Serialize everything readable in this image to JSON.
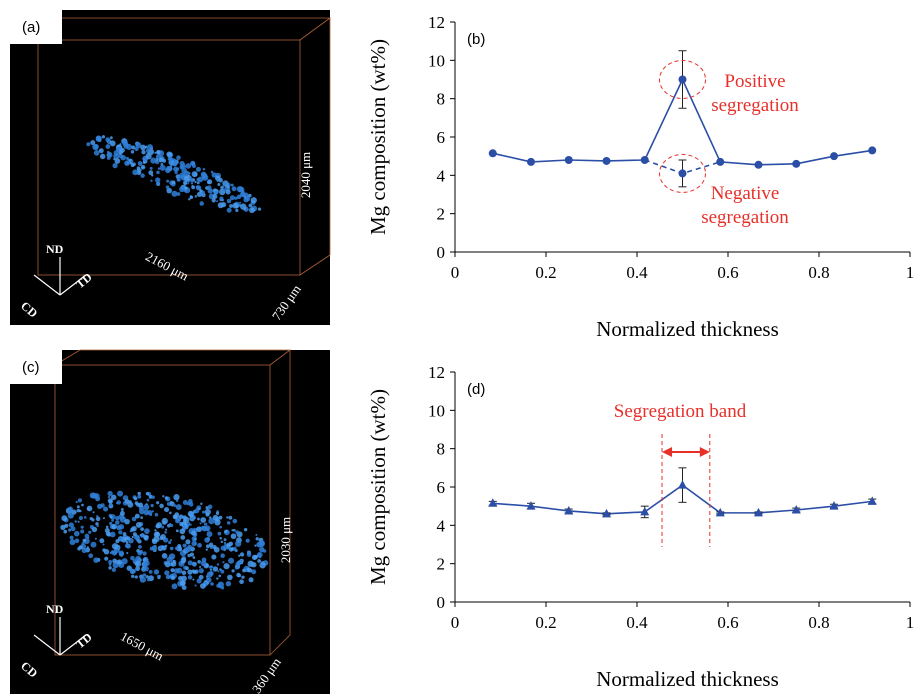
{
  "chart_data": [
    {
      "type": "line",
      "panel": "(b)",
      "xlabel": "Normalized thickness",
      "ylabel": "Mg composition (wt%)",
      "x": [
        0.083,
        0.167,
        0.25,
        0.333,
        0.417,
        0.5,
        0.583,
        0.667,
        0.75,
        0.833,
        0.917
      ],
      "series": [
        {
          "color": "#2b4ea6",
          "marker": "circle",
          "dashed": false,
          "values": [
            5.15,
            4.7,
            4.8,
            4.75,
            4.8,
            9.0,
            4.7,
            4.55,
            4.6,
            5.0,
            5.3
          ],
          "errors": [
            null,
            null,
            null,
            null,
            null,
            1.5,
            null,
            null,
            null,
            null,
            null
          ]
        },
        {
          "color": "#2b4ea6",
          "marker": "circle",
          "dashed": true,
          "values": [
            null,
            null,
            null,
            null,
            4.8,
            4.1,
            4.7,
            null,
            null,
            null,
            null
          ],
          "errors": [
            null,
            null,
            null,
            null,
            null,
            0.7,
            null,
            null,
            null,
            null,
            null
          ]
        }
      ],
      "annotations": [
        "Positive segregation",
        "Negative segregation"
      ],
      "xlim": [
        0,
        1
      ],
      "xticks": [
        0,
        0.2,
        0.4,
        0.6,
        0.8,
        1
      ],
      "ylim": [
        0,
        12
      ],
      "yticks": [
        0,
        2,
        4,
        6,
        8,
        10,
        12
      ]
    },
    {
      "type": "line",
      "panel": "(d)",
      "xlabel": "Normalized thickness",
      "ylabel": "Mg composition (wt%)",
      "x": [
        0.083,
        0.167,
        0.25,
        0.333,
        0.417,
        0.5,
        0.583,
        0.667,
        0.75,
        0.833,
        0.917
      ],
      "series": [
        {
          "color": "#2b4ea6",
          "marker": "triangle",
          "dashed": false,
          "values": [
            5.15,
            5.0,
            4.75,
            4.6,
            4.7,
            6.1,
            4.65,
            4.65,
            4.8,
            5.0,
            5.25
          ],
          "errors": [
            0.1,
            0.15,
            0.1,
            0.05,
            0.3,
            0.9,
            0.05,
            0.05,
            0.1,
            0.1,
            0.12
          ]
        }
      ],
      "annotations": [
        "Segregation band"
      ],
      "band": [
        0.455,
        0.56
      ],
      "xlim": [
        0,
        1
      ],
      "xticks": [
        0,
        0.2,
        0.4,
        0.6,
        0.8,
        1
      ],
      "ylim": [
        0,
        12
      ],
      "yticks": [
        0,
        2,
        4,
        6,
        8,
        10,
        12
      ]
    }
  ],
  "renders": [
    {
      "panel": "(a)",
      "height": "2040 μm",
      "width": "2160 μm",
      "depth": "730 μm",
      "axes": [
        "ND",
        "CD",
        "TD"
      ]
    },
    {
      "panel": "(c)",
      "height": "2030 μm",
      "width": "1650 μm",
      "depth": "360 μm",
      "axes": [
        "ND",
        "CD",
        "TD"
      ]
    }
  ]
}
